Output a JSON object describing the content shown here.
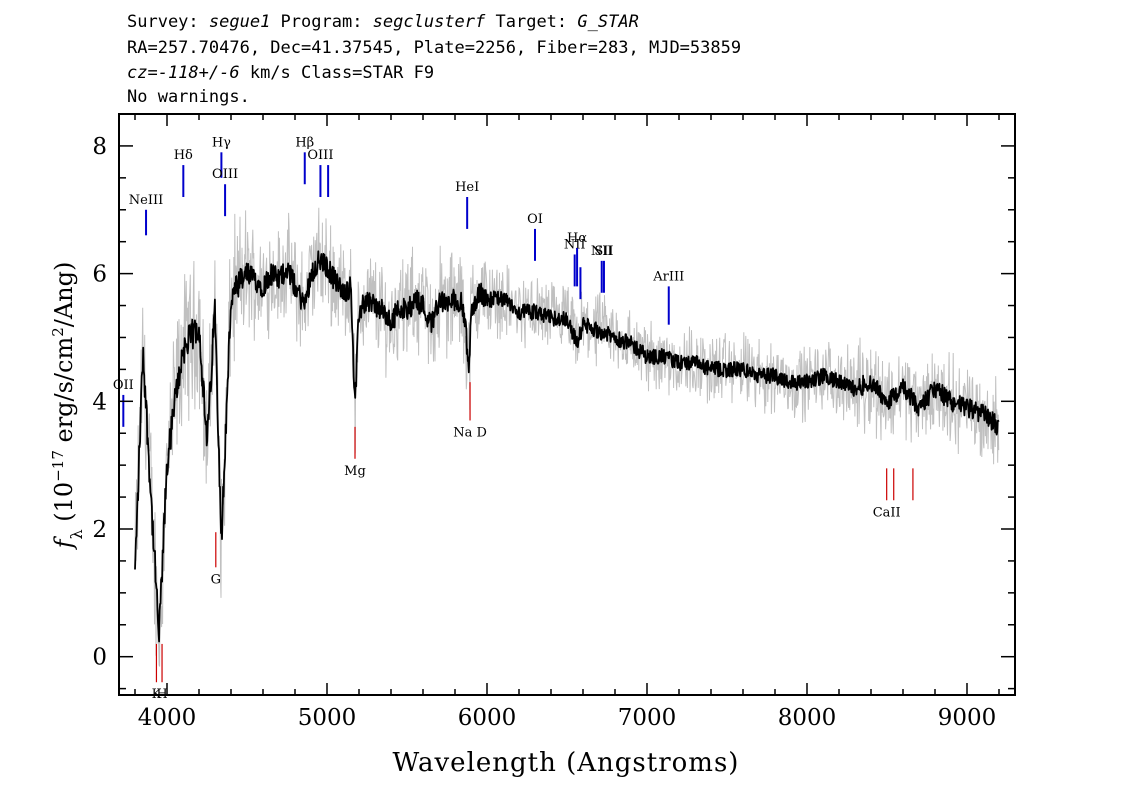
{
  "header": {
    "line1": {
      "survey_label": "Survey: ",
      "survey": "segue1",
      "program_label": " Program: ",
      "program": "segclusterf",
      "target_label": " Target: ",
      "target": "G_STAR"
    },
    "line2": "RA=257.70476, Dec=41.37545, Plate=2256, Fiber=283, MJD=53859",
    "line3": {
      "cz": "cz=-118+/-6",
      "rest": " km/s Class=STAR F9"
    },
    "line4": "No warnings."
  },
  "chart_data": {
    "type": "line",
    "title": "",
    "xlabel": "Wavelength (Angstroms)",
    "ylabel": "f_λ (10^-17 erg/s/cm^2/Ang)",
    "xlim": [
      3700,
      9300
    ],
    "ylim": [
      -0.6,
      8.5
    ],
    "xticks": [
      4000,
      5000,
      6000,
      7000,
      8000,
      9000
    ],
    "yticks": [
      0,
      2,
      4,
      6,
      8
    ],
    "grid": false,
    "colors": {
      "flux": "#000000",
      "noisy": "#c0c0c0",
      "emission": "#0000cc",
      "absorption": "#cc0000"
    },
    "series": [
      {
        "role": "smoothed flux",
        "x": [
          3800,
          3850,
          3900,
          3950,
          4000,
          4050,
          4100,
          4150,
          4200,
          4250,
          4300,
          4340,
          4400,
          4450,
          4500,
          4550,
          4600,
          4650,
          4700,
          4750,
          4800,
          4860,
          4900,
          4950,
          5000,
          5050,
          5100,
          5150,
          5175,
          5200,
          5250,
          5300,
          5350,
          5400,
          5450,
          5500,
          5550,
          5600,
          5650,
          5700,
          5750,
          5800,
          5850,
          5890,
          5900,
          5950,
          6000,
          6100,
          6200,
          6300,
          6400,
          6500,
          6563,
          6600,
          6700,
          6800,
          6900,
          7000,
          7100,
          7200,
          7300,
          7400,
          7500,
          7600,
          7700,
          7800,
          7900,
          8000,
          8100,
          8200,
          8300,
          8400,
          8500,
          8600,
          8700,
          8800,
          8900,
          9000,
          9100,
          9200
        ],
        "y": [
          1.3,
          4.8,
          2.5,
          0.3,
          3.0,
          4.0,
          4.8,
          5.0,
          5.2,
          3.3,
          5.5,
          1.8,
          5.6,
          5.8,
          6.0,
          5.9,
          5.8,
          6.0,
          5.9,
          6.1,
          5.8,
          5.5,
          6.0,
          6.2,
          6.1,
          5.9,
          5.7,
          5.8,
          3.9,
          5.4,
          5.6,
          5.5,
          5.4,
          5.2,
          5.5,
          5.4,
          5.6,
          5.5,
          5.2,
          5.6,
          5.5,
          5.6,
          5.5,
          4.5,
          5.4,
          5.7,
          5.6,
          5.6,
          5.4,
          5.4,
          5.3,
          5.3,
          4.9,
          5.2,
          5.1,
          5.0,
          4.9,
          4.7,
          4.7,
          4.6,
          4.6,
          4.5,
          4.5,
          4.5,
          4.4,
          4.4,
          4.3,
          4.3,
          4.4,
          4.3,
          4.2,
          4.3,
          4.0,
          4.2,
          3.9,
          4.2,
          4.0,
          3.9,
          3.8,
          3.6
        ]
      }
    ],
    "emission_lines": [
      {
        "label": "OII",
        "x": 3727,
        "y0": 3.6,
        "y1": 4.1
      },
      {
        "label": "NeIII",
        "x": 3869,
        "y0": 6.6,
        "y1": 7.0
      },
      {
        "label": "Hδ",
        "x": 4102,
        "y0": 7.2,
        "y1": 7.7
      },
      {
        "label": "Hγ",
        "x": 4340,
        "y0": 7.5,
        "y1": 7.9
      },
      {
        "label": "OIII",
        "x": 4363,
        "y0": 6.9,
        "y1": 7.4
      },
      {
        "label": "Hβ",
        "x": 4861,
        "y0": 7.4,
        "y1": 7.9
      },
      {
        "label": "OIII",
        "x": 4959,
        "y0": 7.2,
        "y1": 7.7
      },
      {
        "label": "",
        "x": 5007,
        "y0": 7.2,
        "y1": 7.7
      },
      {
        "label": "HeI",
        "x": 5876,
        "y0": 6.7,
        "y1": 7.2
      },
      {
        "label": "OI",
        "x": 6300,
        "y0": 6.2,
        "y1": 6.7
      },
      {
        "label": "NII",
        "x": 6548,
        "y0": 5.8,
        "y1": 6.3
      },
      {
        "label": "Hα",
        "x": 6563,
        "y0": 5.8,
        "y1": 6.4
      },
      {
        "label": "",
        "x": 6584,
        "y0": 5.6,
        "y1": 6.1
      },
      {
        "label": "NII",
        "x": 6717,
        "y0": 5.7,
        "y1": 6.2
      },
      {
        "label": "SII",
        "x": 6731,
        "y0": 5.7,
        "y1": 6.2
      },
      {
        "label": "ArIII",
        "x": 7136,
        "y0": 5.2,
        "y1": 5.8
      }
    ],
    "absorption_lines": [
      {
        "label": "K",
        "x": 3934,
        "y0": -0.4,
        "y1": 0.2
      },
      {
        "label": "H",
        "x": 3969,
        "y0": -0.4,
        "y1": 0.2
      },
      {
        "label": "G",
        "x": 4305,
        "y0": 1.4,
        "y1": 1.95
      },
      {
        "label": "Mg",
        "x": 5175,
        "y0": 3.1,
        "y1": 3.6
      },
      {
        "label": "Na D",
        "x": 5894,
        "y0": 3.7,
        "y1": 4.3
      },
      {
        "label": "CaII",
        "x": 8498,
        "y0": 2.45,
        "y1": 2.95
      },
      {
        "label": "",
        "x": 8542,
        "y0": 2.45,
        "y1": 2.95
      },
      {
        "label": "",
        "x": 8662,
        "y0": 2.45,
        "y1": 2.95
      }
    ]
  }
}
